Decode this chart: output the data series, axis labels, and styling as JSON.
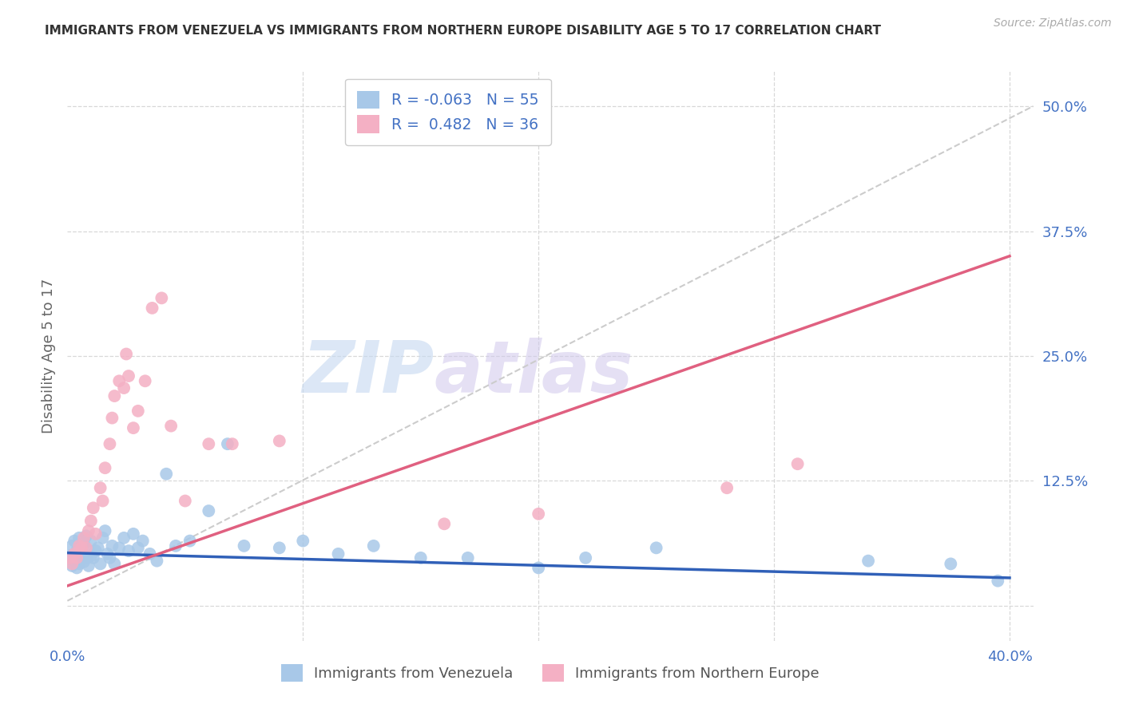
{
  "title": "IMMIGRANTS FROM VENEZUELA VS IMMIGRANTS FROM NORTHERN EUROPE DISABILITY AGE 5 TO 17 CORRELATION CHART",
  "source": "Source: ZipAtlas.com",
  "ylabel": "Disability Age 5 to 17",
  "xlim": [
    0.0,
    0.41
  ],
  "ylim": [
    -0.035,
    0.535
  ],
  "xticks": [
    0.0,
    0.1,
    0.2,
    0.3,
    0.4
  ],
  "xticklabels": [
    "0.0%",
    "",
    "",
    "",
    "40.0%"
  ],
  "ytick_vals": [
    0.0,
    0.125,
    0.25,
    0.375,
    0.5
  ],
  "yticklabels_right": [
    "",
    "12.5%",
    "25.0%",
    "37.5%",
    "50.0%"
  ],
  "legend_r1": "R = -0.063",
  "legend_n1": "N = 55",
  "legend_r2": "R =  0.482",
  "legend_n2": "N = 36",
  "color_venezuela": "#a8c8e8",
  "color_northern_europe": "#f4b0c4",
  "trend_color_venezuela": "#3060b8",
  "trend_color_northern_europe": "#e06080",
  "diagonal_color": "#cccccc",
  "background_color": "#ffffff",
  "grid_color": "#d8d8d8",
  "label_color": "#4472c4",
  "axis_color": "#666666",
  "venezuela_x": [
    0.001,
    0.002,
    0.002,
    0.003,
    0.003,
    0.004,
    0.004,
    0.005,
    0.005,
    0.006,
    0.006,
    0.007,
    0.007,
    0.008,
    0.008,
    0.009,
    0.009,
    0.01,
    0.01,
    0.011,
    0.012,
    0.013,
    0.014,
    0.015,
    0.016,
    0.017,
    0.018,
    0.019,
    0.02,
    0.022,
    0.024,
    0.026,
    0.028,
    0.03,
    0.032,
    0.035,
    0.038,
    0.042,
    0.046,
    0.052,
    0.06,
    0.068,
    0.075,
    0.09,
    0.1,
    0.115,
    0.13,
    0.15,
    0.17,
    0.2,
    0.22,
    0.25,
    0.34,
    0.375,
    0.395
  ],
  "venezuela_y": [
    0.05,
    0.04,
    0.06,
    0.045,
    0.065,
    0.038,
    0.055,
    0.042,
    0.068,
    0.05,
    0.058,
    0.044,
    0.062,
    0.048,
    0.07,
    0.04,
    0.055,
    0.05,
    0.065,
    0.048,
    0.055,
    0.058,
    0.042,
    0.068,
    0.075,
    0.052,
    0.048,
    0.06,
    0.042,
    0.058,
    0.068,
    0.055,
    0.072,
    0.058,
    0.065,
    0.052,
    0.045,
    0.132,
    0.06,
    0.065,
    0.095,
    0.162,
    0.06,
    0.058,
    0.065,
    0.052,
    0.06,
    0.048,
    0.048,
    0.038,
    0.048,
    0.058,
    0.045,
    0.042,
    0.025
  ],
  "northern_europe_x": [
    0.001,
    0.002,
    0.003,
    0.004,
    0.005,
    0.006,
    0.007,
    0.008,
    0.009,
    0.01,
    0.011,
    0.012,
    0.014,
    0.015,
    0.016,
    0.018,
    0.019,
    0.02,
    0.022,
    0.024,
    0.025,
    0.026,
    0.028,
    0.03,
    0.033,
    0.036,
    0.04,
    0.044,
    0.05,
    0.06,
    0.07,
    0.09,
    0.16,
    0.2,
    0.28,
    0.31
  ],
  "northern_europe_y": [
    0.048,
    0.042,
    0.052,
    0.048,
    0.06,
    0.058,
    0.068,
    0.058,
    0.075,
    0.085,
    0.098,
    0.072,
    0.118,
    0.105,
    0.138,
    0.162,
    0.188,
    0.21,
    0.225,
    0.218,
    0.252,
    0.23,
    0.178,
    0.195,
    0.225,
    0.298,
    0.308,
    0.18,
    0.105,
    0.162,
    0.162,
    0.165,
    0.082,
    0.092,
    0.118,
    0.142
  ],
  "trend_venezuela_x0": 0.0,
  "trend_venezuela_y0": 0.053,
  "trend_venezuela_x1": 0.4,
  "trend_venezuela_y1": 0.028,
  "trend_europe_x0": 0.0,
  "trend_europe_y0": 0.02,
  "trend_europe_x1": 0.4,
  "trend_europe_y1": 0.35
}
